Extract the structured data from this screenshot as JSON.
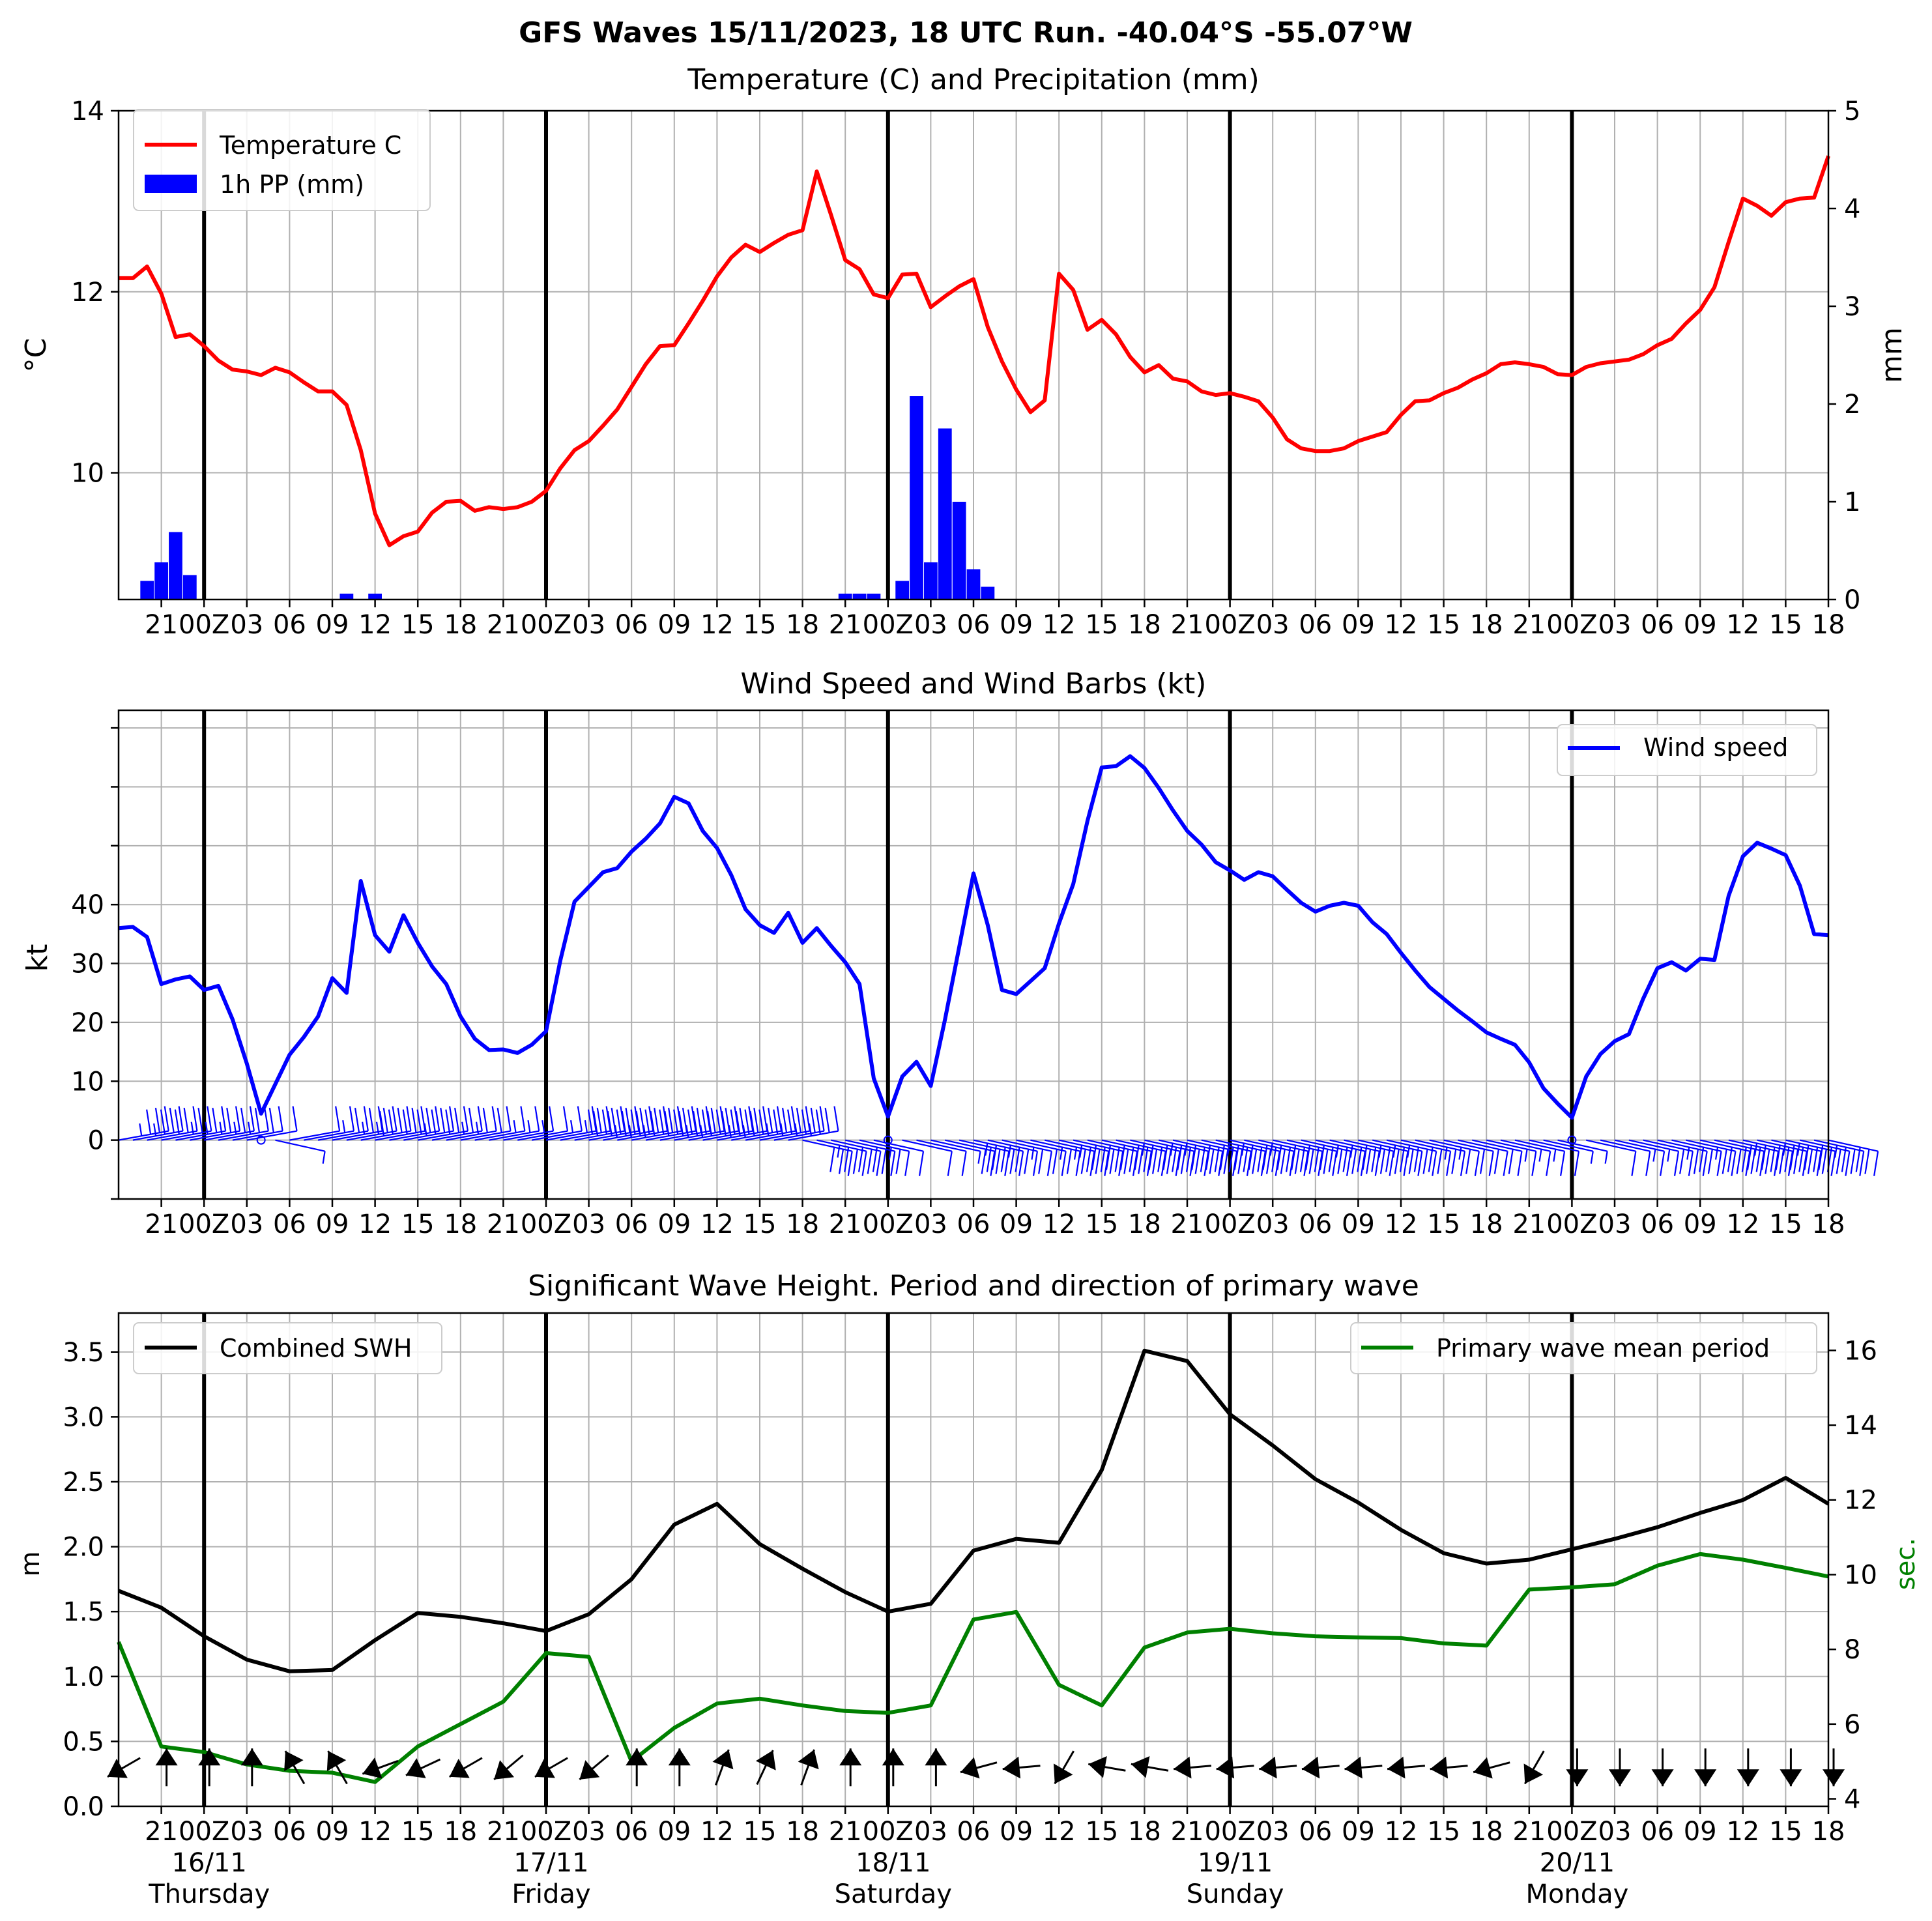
{
  "suptitle": "GFS Waves 15/11/2023, 18 UTC Run. -40.04°S -55.07°W",
  "time_axis": {
    "start_hour": 18,
    "end_hour": 138,
    "tick_labels": [
      "21",
      "00Z",
      "03",
      "06",
      "09",
      "12",
      "15",
      "18",
      "21",
      "00Z",
      "03",
      "06",
      "09",
      "12",
      "15",
      "18",
      "21",
      "00Z",
      "03",
      "06",
      "09",
      "12",
      "15",
      "18",
      "21",
      "00Z",
      "03",
      "06",
      "09",
      "12",
      "15",
      "18",
      "21",
      "00Z",
      "03",
      "06",
      "09",
      "12",
      "15",
      "18"
    ],
    "day_labels": [
      {
        "date": "16/11",
        "weekday": "Thursday"
      },
      {
        "date": "17/11",
        "weekday": "Friday"
      },
      {
        "date": "18/11",
        "weekday": "Saturday"
      },
      {
        "date": "19/11",
        "weekday": "Sunday"
      },
      {
        "date": "20/11",
        "weekday": "Monday"
      }
    ]
  },
  "chart_data": [
    {
      "type": "line",
      "title": "Temperature (C) and Precipitation (mm)",
      "ylabel": "°C",
      "ylabel_right": "mm",
      "ylim": [
        8.6,
        14
      ],
      "ylim_right": [
        0,
        5
      ],
      "yticks": [
        10,
        12,
        14
      ],
      "yticks_right": [
        0,
        1,
        2,
        3,
        4,
        5
      ],
      "legend": "upper-left",
      "grid": true,
      "series": [
        {
          "name": "Temperature C",
          "color": "#ff0000",
          "x": [
            18,
            19,
            20,
            21,
            22,
            23,
            24,
            25,
            26,
            27,
            28,
            29,
            30,
            31,
            32,
            33,
            34,
            35,
            36,
            37,
            38,
            39,
            40,
            41,
            42,
            43,
            44,
            45,
            46,
            47,
            48,
            49,
            50,
            51,
            52,
            53,
            54,
            55,
            56,
            57,
            58,
            59,
            60,
            61,
            62,
            63,
            64,
            65,
            66,
            67,
            68,
            69,
            70,
            71,
            72,
            73,
            74,
            75,
            76,
            77,
            78,
            79,
            80,
            81,
            82,
            83,
            84,
            85,
            86,
            87,
            88,
            89,
            90,
            91,
            92,
            93,
            94,
            95,
            96,
            97,
            98,
            99,
            100,
            101,
            102,
            103,
            104,
            105,
            106,
            107,
            108,
            109,
            110,
            111,
            112,
            113,
            114,
            115,
            116,
            117,
            118,
            119,
            120,
            121,
            122,
            123,
            124,
            125,
            126,
            127,
            128,
            129,
            130,
            131,
            132,
            133,
            134,
            135,
            136,
            137,
            138
          ],
          "values": [
            12.15,
            12.15,
            12.28,
            11.98,
            11.5,
            11.53,
            11.4,
            11.24,
            11.14,
            11.12,
            11.08,
            11.16,
            11.11,
            11.0,
            10.9,
            10.9,
            10.75,
            10.25,
            9.55,
            9.2,
            9.3,
            9.35,
            9.56,
            9.68,
            9.69,
            9.58,
            9.62,
            9.6,
            9.62,
            9.68,
            9.8,
            10.05,
            10.25,
            10.35,
            10.52,
            10.7,
            10.95,
            11.2,
            11.4,
            11.41,
            11.65,
            11.9,
            12.17,
            12.38,
            12.52,
            12.44,
            12.54,
            12.63,
            12.68,
            13.33,
            12.85,
            12.35,
            12.25,
            11.97,
            11.93,
            12.19,
            12.2,
            11.83,
            11.95,
            12.06,
            12.14,
            11.61,
            11.23,
            10.92,
            10.67,
            10.8,
            12.2,
            12.02,
            11.58,
            11.69,
            11.53,
            11.28,
            11.11,
            11.19,
            11.04,
            11.01,
            10.9,
            10.86,
            10.88,
            10.84,
            10.79,
            10.61,
            10.37,
            10.27,
            10.24,
            10.24,
            10.27,
            10.35,
            10.4,
            10.45,
            10.64,
            10.79,
            10.8,
            10.88,
            10.94,
            11.03,
            11.1,
            11.2,
            11.22,
            11.2,
            11.17,
            11.09,
            11.08,
            11.17,
            11.21,
            11.23,
            11.25,
            11.31,
            11.41,
            11.48,
            11.65,
            11.8,
            12.05,
            12.55,
            13.03,
            12.95,
            12.84,
            12.99,
            13.03,
            13.04,
            13.5
          ]
        },
        {
          "name": "1h PP (mm)",
          "color": "#0000ff",
          "kind": "bar",
          "x": [
            20,
            21,
            22,
            23,
            34,
            36,
            69,
            70,
            71,
            73,
            74,
            75,
            76,
            77,
            78,
            79
          ],
          "values": [
            0.19,
            0.38,
            0.69,
            0.25,
            0.06,
            0.06,
            0.06,
            0.06,
            0.06,
            0.19,
            2.08,
            0.38,
            1.75,
            1.0,
            0.31,
            0.13
          ]
        }
      ]
    },
    {
      "type": "line",
      "title": "Wind Speed and Wind Barbs (kt)",
      "ylabel": "kt",
      "ylim": [
        -10,
        73
      ],
      "yticks": [
        0,
        10,
        20,
        30,
        40
      ],
      "minor_ticks": [
        -10,
        50,
        60,
        70
      ],
      "legend": "upper-right",
      "grid": true,
      "series": [
        {
          "name": "Wind speed",
          "color": "#0000ff",
          "x": [
            18,
            19,
            20,
            21,
            22,
            23,
            24,
            25,
            26,
            27,
            28,
            29,
            30,
            31,
            32,
            33,
            34,
            35,
            36,
            37,
            38,
            39,
            40,
            41,
            42,
            43,
            44,
            45,
            46,
            47,
            48,
            49,
            50,
            51,
            52,
            53,
            54,
            55,
            56,
            57,
            58,
            59,
            60,
            61,
            62,
            63,
            64,
            65,
            66,
            67,
            68,
            69,
            70,
            71,
            72,
            73,
            74,
            75,
            76,
            77,
            78,
            79,
            80,
            81,
            82,
            83,
            84,
            85,
            86,
            87,
            88,
            89,
            90,
            91,
            92,
            93,
            94,
            95,
            96,
            97,
            98,
            99,
            100,
            101,
            102,
            103,
            104,
            105,
            106,
            107,
            108,
            109,
            110,
            111,
            112,
            113,
            114,
            115,
            116,
            117,
            118,
            119,
            120,
            121,
            122,
            123,
            124,
            125,
            126,
            127,
            128,
            129,
            130,
            131,
            132,
            133,
            134,
            135,
            136,
            137,
            138
          ],
          "values": [
            36,
            36.2,
            34.5,
            26.5,
            27.3,
            27.8,
            25.5,
            26.2,
            20.5,
            13,
            4.5,
            9.5,
            14.5,
            17.5,
            21,
            27.5,
            25,
            44,
            34.8,
            32,
            38.2,
            33.5,
            29.5,
            26.5,
            21,
            17.2,
            15.3,
            15.4,
            14.8,
            16.2,
            18.5,
            30.5,
            40.5,
            43,
            45.5,
            46.2,
            49,
            51.2,
            53.8,
            58.3,
            57.2,
            52.5,
            49.6,
            45,
            39.2,
            36.5,
            35.2,
            38.6,
            33.5,
            36,
            33,
            30.2,
            26.5,
            10.5,
            4,
            10.8,
            13.3,
            9.2,
            20.5,
            32.8,
            45.3,
            36.5,
            25.5,
            24.8,
            27,
            29.2,
            36.8,
            43.5,
            54.2,
            63.3,
            63.5,
            65.2,
            63.2,
            59.8,
            56,
            52.5,
            50.2,
            47.2,
            45.8,
            44.2,
            45.5,
            44.8,
            42.5,
            40.3,
            38.8,
            39.8,
            40.3,
            39.8,
            37,
            35,
            31.8,
            28.8,
            26,
            24,
            22,
            20.2,
            18.3,
            17.2,
            16.2,
            13.2,
            8.8,
            6.2,
            3.8,
            10.8,
            14.6,
            16.8,
            18,
            24,
            29.2,
            30.2,
            28.8,
            30.8,
            30.6,
            41.5,
            48.2,
            50.5,
            49.5,
            48.4,
            43.2,
            35,
            34.8
          ]
        }
      ]
    },
    {
      "type": "line",
      "title": "Significant Wave Height. Period and direction of primary wave",
      "ylabel": "m",
      "ylabel_right": "sec.",
      "ylim": [
        0,
        3.8
      ],
      "ylim_right": [
        3.8,
        17
      ],
      "yticks": [
        0.0,
        0.5,
        1.0,
        1.5,
        2.0,
        2.5,
        3.0,
        3.5
      ],
      "ytick_labels": [
        "0.0",
        "0.5",
        "1.0",
        "1.5",
        "2.0",
        "2.5",
        "3.0",
        "3.5"
      ],
      "yticks_right": [
        4,
        6,
        8,
        10,
        12,
        14,
        16
      ],
      "grid": true,
      "series": [
        {
          "name": "Combined SWH",
          "color": "#000000",
          "legend": "upper-left",
          "x": [
            18,
            21,
            24,
            27,
            30,
            33,
            36,
            39,
            42,
            45,
            48,
            51,
            54,
            57,
            60,
            63,
            66,
            69,
            72,
            75,
            78,
            81,
            84,
            87,
            90,
            93,
            96,
            99,
            102,
            105,
            108,
            111,
            114,
            117,
            120,
            123,
            126,
            129,
            132,
            135,
            138
          ],
          "values": [
            1.66,
            1.53,
            1.31,
            1.13,
            1.04,
            1.05,
            1.28,
            1.49,
            1.46,
            1.41,
            1.35,
            1.48,
            1.75,
            2.17,
            2.33,
            2.02,
            1.83,
            1.65,
            1.5,
            1.56,
            1.97,
            2.06,
            2.03,
            2.59,
            3.51,
            3.43,
            3.02,
            2.78,
            2.52,
            2.34,
            2.13,
            1.95,
            1.87,
            1.9,
            1.98,
            2.06,
            2.15,
            2.26,
            2.36,
            2.53,
            2.33
          ]
        },
        {
          "name": "Primary wave mean period",
          "color": "#008000",
          "legend": "upper-right",
          "axis": "right",
          "x": [
            18,
            21,
            24,
            27,
            30,
            33,
            36,
            39,
            42,
            45,
            48,
            51,
            54,
            57,
            60,
            63,
            66,
            69,
            72,
            75,
            78,
            81,
            84,
            87,
            90,
            93,
            96,
            99,
            102,
            105,
            108,
            111,
            114,
            117,
            120,
            123,
            126,
            129,
            132,
            135,
            138
          ],
          "values": [
            8.2,
            5.4,
            5.25,
            4.92,
            4.75,
            4.7,
            4.45,
            5.4,
            6,
            6.6,
            7.9,
            7.8,
            5,
            5.9,
            6.55,
            6.68,
            6.5,
            6.35,
            6.3,
            6.5,
            8.8,
            9,
            7.05,
            6.5,
            8.05,
            8.45,
            8.55,
            8.43,
            8.35,
            8.32,
            8.3,
            8.16,
            8.1,
            9.6,
            9.66,
            9.74,
            10.24,
            10.55,
            10.4,
            10.18,
            9.95
          ]
        },
        {
          "name": "Primary wave direction",
          "color": "#000000",
          "kind": "arrows",
          "x": [
            18,
            21,
            24,
            27,
            30,
            33,
            36,
            39,
            42,
            45,
            48,
            51,
            54,
            57,
            60,
            63,
            66,
            69,
            72,
            75,
            78,
            81,
            84,
            87,
            90,
            93,
            96,
            99,
            102,
            105,
            108,
            111,
            114,
            117,
            120,
            123,
            126,
            129,
            132,
            135,
            138
          ],
          "direction_deg": [
            240,
            0,
            0,
            0,
            330,
            330,
            250,
            245,
            240,
            230,
            240,
            230,
            0,
            0,
            20,
            25,
            20,
            0,
            0,
            0,
            255,
            265,
            210,
            280,
            280,
            265,
            265,
            265,
            265,
            265,
            265,
            265,
            255,
            210,
            180,
            180,
            180,
            180,
            180,
            180,
            180
          ]
        }
      ]
    }
  ]
}
